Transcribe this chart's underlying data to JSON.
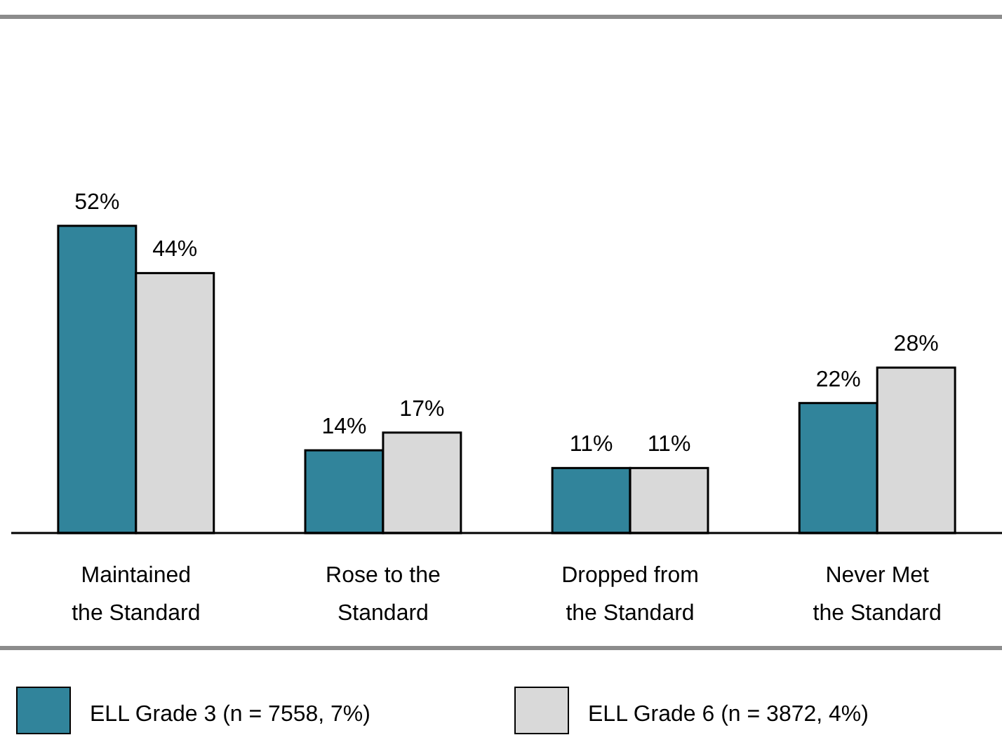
{
  "chart_data": {
    "type": "bar",
    "categories": [
      "Maintained\nthe Standard",
      "Rose to the\nStandard",
      "Dropped from\nthe Standard",
      "Never Met\nthe Standard"
    ],
    "series": [
      {
        "name": "ELL Grade 3 (n = 7558, 7%)",
        "color": "#31849b",
        "values": [
          52,
          14,
          11,
          22
        ],
        "value_labels": [
          "52%",
          "14%",
          "11%",
          "22%"
        ]
      },
      {
        "name": "ELL Grade 6 (n = 3872, 4%)",
        "color": "#d9d9d9",
        "values": [
          44,
          17,
          11,
          28
        ],
        "value_labels": [
          "44%",
          "17%",
          "11%",
          "28%"
        ]
      }
    ],
    "legend": "bottom"
  }
}
